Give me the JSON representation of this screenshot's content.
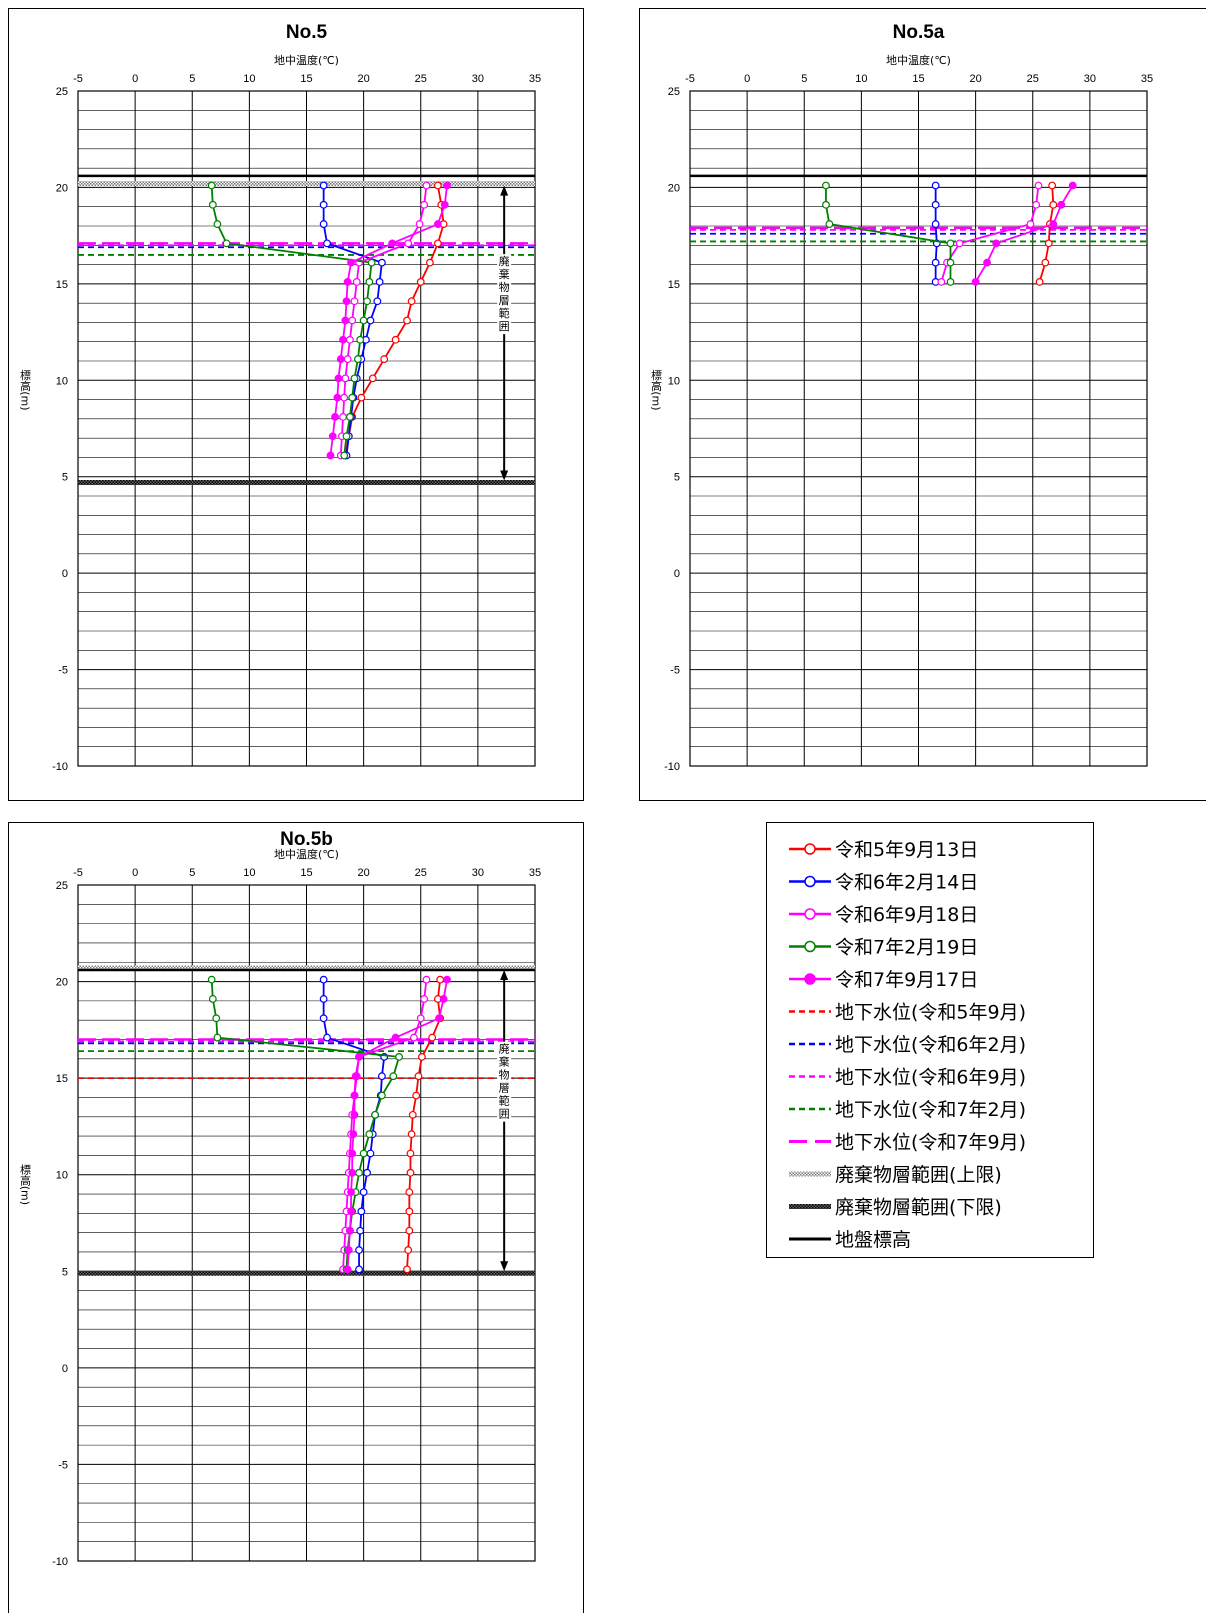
{
  "chart_data": [
    {
      "type": "line",
      "title": "No.5",
      "xlabel": "地中温度(℃)",
      "ylabel": "標高(m)",
      "xlim": [
        -5,
        35
      ],
      "ylim": [
        -10,
        25
      ],
      "xticks": [
        -5,
        0,
        5,
        10,
        15,
        20,
        25,
        30,
        35
      ],
      "yticks": [
        -10,
        -5,
        0,
        5,
        10,
        15,
        20,
        25
      ],
      "series": [
        {
          "name": "令和5年9月13日",
          "x": [
            26.5,
            26.8,
            27.0,
            26.5,
            25.8,
            25.0,
            24.2,
            23.8,
            22.8,
            21.8,
            20.8,
            19.8,
            19.0,
            18.7,
            18.4
          ],
          "y": [
            20.1,
            19.1,
            18.1,
            17.1,
            16.1,
            15.1,
            14.1,
            13.1,
            12.1,
            11.1,
            10.1,
            9.1,
            8.1,
            7.1,
            6.1
          ]
        },
        {
          "name": "令和6年2月14日",
          "x": [
            16.5,
            16.5,
            16.5,
            16.8,
            21.6,
            21.4,
            21.2,
            20.6,
            20.2,
            19.8,
            19.4,
            19.1,
            18.9,
            18.7,
            18.5
          ],
          "y": [
            20.1,
            19.1,
            18.1,
            17.1,
            16.1,
            15.1,
            14.1,
            13.1,
            12.1,
            11.1,
            10.1,
            9.1,
            8.1,
            7.1,
            6.1
          ]
        },
        {
          "name": "令和6年9月18日",
          "x": [
            25.5,
            25.3,
            24.9,
            23.9,
            19.6,
            19.4,
            19.2,
            19.0,
            18.8,
            18.6,
            18.4,
            18.3,
            18.2,
            18.1,
            18.0
          ],
          "y": [
            20.1,
            19.1,
            18.1,
            17.1,
            16.1,
            15.1,
            14.1,
            13.1,
            12.1,
            11.1,
            10.1,
            9.1,
            8.1,
            7.1,
            6.1
          ]
        },
        {
          "name": "令和7年2月19日",
          "x": [
            6.7,
            6.8,
            7.2,
            8.0,
            20.7,
            20.5,
            20.3,
            20.0,
            19.7,
            19.5,
            19.2,
            19.0,
            18.8,
            18.5,
            18.3
          ],
          "y": [
            20.1,
            19.1,
            18.1,
            17.1,
            16.1,
            15.1,
            14.1,
            13.1,
            12.1,
            11.1,
            10.1,
            9.1,
            8.1,
            7.1,
            6.1
          ]
        },
        {
          "name": "令和7年9月17日",
          "x": [
            27.3,
            27.1,
            26.5,
            22.5,
            18.9,
            18.6,
            18.5,
            18.4,
            18.2,
            18.0,
            17.8,
            17.7,
            17.5,
            17.3,
            17.1
          ],
          "y": [
            20.1,
            19.1,
            18.1,
            17.1,
            16.1,
            15.1,
            14.1,
            13.1,
            12.1,
            11.1,
            10.1,
            9.1,
            8.1,
            7.1,
            6.1
          ]
        }
      ],
      "water_levels": [
        {
          "name": "地下水位(令和6年2月)",
          "y": 16.9
        },
        {
          "name": "地下水位(令和6年9月)",
          "y": 17.0
        },
        {
          "name": "地下水位(令和7年2月)",
          "y": 16.5
        },
        {
          "name": "地下水位(令和7年9月)",
          "y": 17.1
        }
      ],
      "waste_upper": 20.2,
      "waste_lower": 4.7,
      "ground": 20.6,
      "waste_label": "廃棄物層範囲"
    },
    {
      "type": "line",
      "title": "No.5a",
      "xlabel": "地中温度(℃)",
      "ylabel": "標高(m)",
      "xlim": [
        -5,
        35
      ],
      "ylim": [
        -10,
        25
      ],
      "xticks": [
        -5,
        0,
        5,
        10,
        15,
        20,
        25,
        30,
        35
      ],
      "yticks": [
        -10,
        -5,
        0,
        5,
        10,
        15,
        20,
        25
      ],
      "series": [
        {
          "name": "令和5年9月13日",
          "x": [
            26.7,
            26.8,
            26.5,
            26.4,
            26.1,
            25.6
          ],
          "y": [
            20.1,
            19.1,
            18.1,
            17.1,
            16.1,
            15.1
          ]
        },
        {
          "name": "令和6年2月14日",
          "x": [
            16.5,
            16.5,
            16.5,
            16.6,
            16.5,
            16.5
          ],
          "y": [
            20.1,
            19.1,
            18.1,
            17.1,
            16.1,
            15.1
          ]
        },
        {
          "name": "令和6年9月18日",
          "x": [
            25.5,
            25.3,
            24.8,
            18.6,
            17.5,
            17.0
          ],
          "y": [
            20.1,
            19.1,
            18.1,
            17.1,
            16.1,
            15.1
          ]
        },
        {
          "name": "令和7年2月19日",
          "x": [
            6.9,
            6.9,
            7.2,
            17.8,
            17.8,
            17.8
          ],
          "y": [
            20.1,
            19.1,
            18.1,
            17.1,
            16.1,
            15.1
          ]
        },
        {
          "name": "令和7年9月17日",
          "x": [
            28.5,
            27.5,
            26.8,
            21.8,
            21.0,
            20.0
          ],
          "y": [
            20.1,
            19.1,
            18.1,
            17.1,
            16.1,
            15.1
          ]
        }
      ],
      "water_levels": [
        {
          "name": "地下水位(令和6年2月)",
          "y": 17.6
        },
        {
          "name": "地下水位(令和6年9月)",
          "y": 17.8
        },
        {
          "name": "地下水位(令和7年2月)",
          "y": 17.2
        },
        {
          "name": "地下水位(令和7年9月)",
          "y": 17.9
        }
      ],
      "waste_upper": null,
      "waste_lower": null,
      "ground": 20.6,
      "waste_label": ""
    },
    {
      "type": "line",
      "title": "No.5b",
      "xlabel": "地中温度(℃)",
      "ylabel": "標高(m)",
      "xlim": [
        -5,
        35
      ],
      "ylim": [
        -10,
        25
      ],
      "xticks": [
        -5,
        0,
        5,
        10,
        15,
        20,
        25,
        30,
        35
      ],
      "yticks": [
        -10,
        -5,
        0,
        5,
        10,
        15,
        20,
        25
      ],
      "series": [
        {
          "name": "令和5年9月13日",
          "x": [
            26.7,
            26.5,
            26.7,
            26.0,
            25.1,
            24.8,
            24.6,
            24.3,
            24.2,
            24.1,
            24.1,
            24.0,
            24.0,
            24.0,
            23.9,
            23.8
          ],
          "y": [
            20.1,
            19.1,
            18.1,
            17.1,
            16.1,
            15.1,
            14.1,
            13.1,
            12.1,
            11.1,
            10.1,
            9.1,
            8.1,
            7.1,
            6.1,
            5.1
          ]
        },
        {
          "name": "令和6年2月14日",
          "x": [
            16.5,
            16.5,
            16.5,
            16.8,
            21.8,
            21.6,
            21.5,
            21.0,
            20.8,
            20.6,
            20.3,
            20.0,
            19.8,
            19.7,
            19.6,
            19.6
          ],
          "y": [
            20.1,
            19.1,
            18.1,
            17.1,
            16.1,
            15.1,
            14.1,
            13.1,
            12.1,
            11.1,
            10.1,
            9.1,
            8.1,
            7.1,
            6.1,
            5.1
          ]
        },
        {
          "name": "令和6年9月18日",
          "x": [
            25.5,
            25.3,
            25.0,
            24.4,
            19.6,
            19.4,
            19.2,
            19.0,
            18.9,
            18.8,
            18.7,
            18.6,
            18.5,
            18.4,
            18.3,
            18.2
          ],
          "y": [
            20.1,
            19.1,
            18.1,
            17.1,
            16.1,
            15.1,
            14.1,
            13.1,
            12.1,
            11.1,
            10.1,
            9.1,
            8.1,
            7.1,
            6.1,
            5.1
          ]
        },
        {
          "name": "令和7年2月19日",
          "x": [
            6.7,
            6.8,
            7.1,
            7.2,
            23.1,
            22.6,
            21.6,
            21.0,
            20.5,
            20.0,
            19.6,
            19.3,
            19.0,
            18.8,
            18.6,
            18.5
          ],
          "y": [
            20.1,
            19.1,
            18.1,
            17.1,
            16.1,
            15.1,
            14.1,
            13.1,
            12.1,
            11.1,
            10.1,
            9.1,
            8.1,
            7.1,
            6.1,
            5.1
          ]
        },
        {
          "name": "令和7年9月17日",
          "x": [
            27.3,
            27.0,
            26.6,
            22.8,
            19.6,
            19.3,
            19.2,
            19.2,
            19.1,
            19.0,
            19.0,
            18.9,
            18.9,
            18.8,
            18.7,
            18.6
          ],
          "y": [
            20.1,
            19.1,
            18.1,
            17.1,
            16.1,
            15.1,
            14.1,
            13.1,
            12.1,
            11.1,
            10.1,
            9.1,
            8.1,
            7.1,
            6.1,
            5.1
          ]
        }
      ],
      "water_levels": [
        {
          "name": "地下水位(令和5年9月)",
          "y": 15.0
        },
        {
          "name": "地下水位(令和6年2月)",
          "y": 16.8
        },
        {
          "name": "地下水位(令和6年9月)",
          "y": 16.9
        },
        {
          "name": "地下水位(令和7年2月)",
          "y": 16.4
        },
        {
          "name": "地下水位(令和7年9月)",
          "y": 17.0
        }
      ],
      "waste_upper": 20.7,
      "waste_lower": 4.9,
      "ground": 20.6,
      "waste_label": "廃棄物層範囲"
    }
  ],
  "legend": [
    {
      "label": "令和5年9月13日",
      "style": "series",
      "color": "#ff0000",
      "marker": "open"
    },
    {
      "label": "令和6年2月14日",
      "style": "series",
      "color": "#0000ff",
      "marker": "open"
    },
    {
      "label": "令和6年9月18日",
      "style": "series",
      "color": "#ff00ff",
      "marker": "open"
    },
    {
      "label": "令和7年2月19日",
      "style": "series",
      "color": "#008000",
      "marker": "open"
    },
    {
      "label": "令和7年9月17日",
      "style": "series",
      "color": "#ff00ff",
      "marker": "filled"
    },
    {
      "label": "地下水位(令和5年9月)",
      "style": "dash",
      "color": "#ff0000"
    },
    {
      "label": "地下水位(令和6年2月)",
      "style": "dash",
      "color": "#0000ff"
    },
    {
      "label": "地下水位(令和6年9月)",
      "style": "dash",
      "color": "#ff00ff"
    },
    {
      "label": "地下水位(令和7年2月)",
      "style": "dash",
      "color": "#008000"
    },
    {
      "label": "地下水位(令和7年9月)",
      "style": "longdash",
      "color": "#ff00ff"
    },
    {
      "label": "廃棄物層範囲(上限)",
      "style": "hatch-light",
      "color": "#888888"
    },
    {
      "label": "廃棄物層範囲(下限)",
      "style": "hatch-dark",
      "color": "#000000"
    },
    {
      "label": "地盤標高",
      "style": "solid",
      "color": "#000000"
    }
  ],
  "colors": {
    "series": [
      "#ff0000",
      "#0000ff",
      "#ff00ff",
      "#008000",
      "#ff00ff"
    ],
    "water": {
      "令和5年9月": "#ff0000",
      "令和6年2月": "#0000ff",
      "令和6年9月": "#ff00ff",
      "令和7年2月": "#008000",
      "令和7年9月": "#ff00ff"
    }
  }
}
